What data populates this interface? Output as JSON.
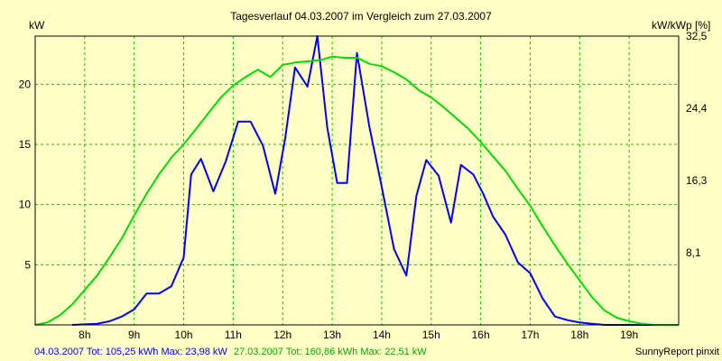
{
  "chart_data": {
    "type": "line",
    "title": "Tagesverlauf 04.03.2007 im Vergleich zum 27.03.2007",
    "ylabel_left": "kW",
    "ylabel_right": "kW/kWp [%]",
    "xlim": [
      7.0,
      20.0
    ],
    "ylim": [
      0,
      24
    ],
    "x_ticks": [
      8,
      9,
      10,
      11,
      12,
      13,
      14,
      15,
      16,
      17,
      18,
      19
    ],
    "x_tick_labels": [
      "8h",
      "9h",
      "10h",
      "11h",
      "12h",
      "13h",
      "14h",
      "15h",
      "16h",
      "17h",
      "18h",
      "19h"
    ],
    "y_left_ticks": [
      5,
      10,
      15,
      20
    ],
    "y_left_tick_labels": [
      "5",
      "10",
      "15",
      "20"
    ],
    "y_right_ticks": [
      6,
      12,
      18,
      24
    ],
    "y_right_tick_labels": [
      "8,1",
      "16,3",
      "24,4",
      "32,5"
    ],
    "grid": true,
    "series": [
      {
        "name": "04.03.2007",
        "color": "#0000ff",
        "x": [
          7.75,
          8.25,
          8.5,
          8.75,
          9.0,
          9.25,
          9.5,
          9.75,
          10.0,
          10.15,
          10.35,
          10.6,
          10.85,
          11.1,
          11.35,
          11.6,
          11.85,
          12.05,
          12.25,
          12.5,
          12.7,
          12.9,
          13.1,
          13.3,
          13.5,
          13.75,
          14.0,
          14.25,
          14.5,
          14.7,
          14.9,
          15.15,
          15.4,
          15.6,
          15.85,
          16.05,
          16.25,
          16.5,
          16.75,
          17.0,
          17.25,
          17.5,
          17.75,
          18.0,
          18.25,
          18.5,
          18.75,
          19.0,
          19.25,
          19.5
        ],
        "y": [
          0.0,
          0.1,
          0.3,
          0.7,
          1.3,
          2.6,
          2.6,
          3.2,
          5.6,
          12.5,
          13.8,
          11.1,
          13.6,
          16.9,
          16.9,
          14.9,
          10.9,
          15.5,
          21.4,
          19.8,
          24.0,
          16.4,
          11.8,
          11.8,
          22.6,
          16.5,
          11.5,
          6.3,
          4.1,
          10.7,
          13.7,
          12.4,
          8.5,
          13.3,
          12.5,
          10.9,
          9.0,
          7.5,
          5.2,
          4.3,
          2.2,
          0.7,
          0.4,
          0.2,
          0.1,
          0.0,
          0.0,
          0.0,
          0.0,
          0.0
        ]
      },
      {
        "name": "27.03.2007",
        "color": "#00dd00",
        "x": [
          7.0,
          7.25,
          7.5,
          7.75,
          8.0,
          8.25,
          8.5,
          8.75,
          9.0,
          9.25,
          9.5,
          9.75,
          10.0,
          10.25,
          10.5,
          10.75,
          11.0,
          11.25,
          11.5,
          11.75,
          12.0,
          12.25,
          12.5,
          12.75,
          13.0,
          13.25,
          13.5,
          13.75,
          14.0,
          14.25,
          14.5,
          14.75,
          15.0,
          15.25,
          15.5,
          15.75,
          16.0,
          16.25,
          16.5,
          16.75,
          17.0,
          17.25,
          17.5,
          17.75,
          18.0,
          18.25,
          18.5,
          18.75,
          19.0,
          19.25,
          19.5,
          19.75,
          20.0
        ],
        "y": [
          0.0,
          0.2,
          0.8,
          1.7,
          2.9,
          4.1,
          5.6,
          7.2,
          9.1,
          10.9,
          12.5,
          13.9,
          15.0,
          16.3,
          17.6,
          18.9,
          19.9,
          20.6,
          21.2,
          20.6,
          21.6,
          21.8,
          21.9,
          22.0,
          22.3,
          22.2,
          22.2,
          21.7,
          21.5,
          21.0,
          20.4,
          19.5,
          18.9,
          18.1,
          17.2,
          16.3,
          15.2,
          14.0,
          12.8,
          11.3,
          9.9,
          8.2,
          6.6,
          5.1,
          3.7,
          2.3,
          1.2,
          0.6,
          0.3,
          0.1,
          0.0,
          0.0,
          0.0
        ]
      }
    ]
  },
  "footer": {
    "series1_text": "04.03.2007 Tot: 105,25 kWh Max: 23,98 kW",
    "series2_text": "27.03.2007 Tot: 160,86 kWh Max: 22,51 kW",
    "credit": "SunnyReport pinxit"
  }
}
